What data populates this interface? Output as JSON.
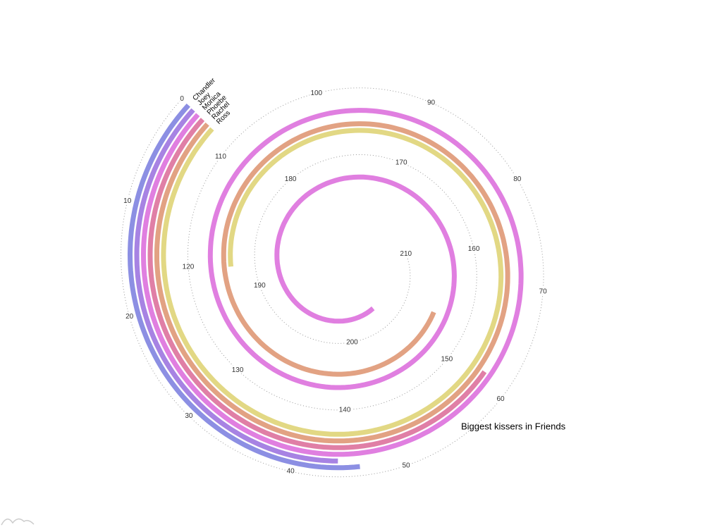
{
  "chart_data": {
    "type": "spiral_bar",
    "title": "Biggest kissers in Friends",
    "categories": [
      "Chandler",
      "Joey",
      "Monica",
      "Phoebe",
      "Rachel",
      "Ross"
    ],
    "values": [
      46,
      44,
      203,
      61,
      153,
      120
    ],
    "colors": [
      "#8c8fe3",
      "#a783e3",
      "#e07fe0",
      "#e07fa6",
      "#e2a283",
      "#e2d884"
    ],
    "ylim": [
      0,
      210
    ],
    "yticks": [
      0,
      10,
      20,
      30,
      40,
      50,
      60,
      70,
      80,
      90,
      100,
      110,
      120,
      130,
      140,
      150,
      160,
      170,
      180,
      190,
      200,
      210
    ]
  }
}
